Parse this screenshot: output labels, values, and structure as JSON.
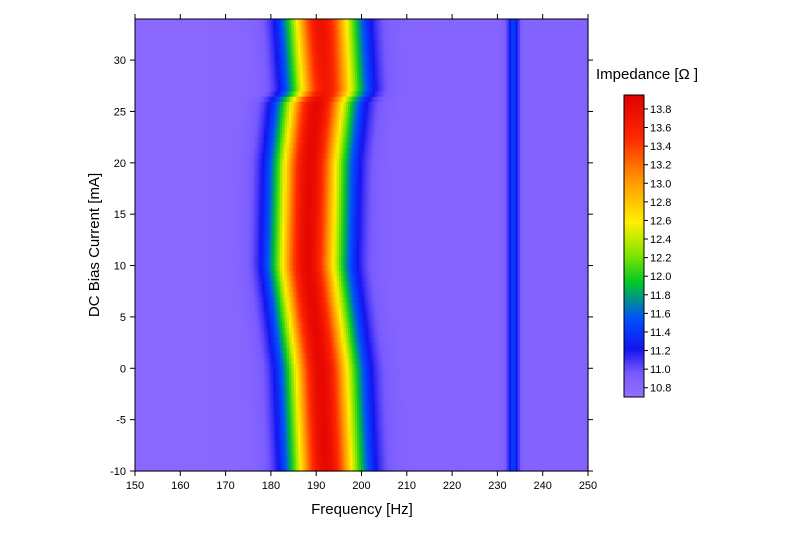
{
  "chart_data": {
    "type": "heatmap",
    "xlabel": "Frequency [Hz]",
    "ylabel": "DC Bias Current [mA]",
    "xlim": [
      150,
      250
    ],
    "ylim": [
      -10,
      34
    ],
    "x_ticks": [
      150,
      160,
      170,
      180,
      190,
      200,
      210,
      220,
      230,
      240,
      250
    ],
    "y_ticks": [
      -10,
      -5,
      0,
      5,
      10,
      15,
      20,
      25,
      30
    ],
    "colorbar": {
      "title": "Impedance [Ω ]",
      "range": [
        10.7,
        13.95
      ],
      "ticks": [
        "13.8",
        "13.6",
        "13.4",
        "13.2",
        "13.0",
        "12.8",
        "12.6",
        "12.4",
        "12.2",
        "12.0",
        "11.8",
        "11.6",
        "11.4",
        "11.2",
        "11.0",
        "10.8"
      ]
    },
    "baseline_impedance": 10.85,
    "resonance_ridge": [
      {
        "current": -10,
        "center_hz": 192,
        "peak": 13.9
      },
      {
        "current": 0,
        "center_hz": 191,
        "peak": 13.9
      },
      {
        "current": 10,
        "center_hz": 188,
        "peak": 13.9
      },
      {
        "current": 20,
        "center_hz": 188.5,
        "peak": 13.9
      },
      {
        "current": 26,
        "center_hz": 190,
        "peak": 13.9
      },
      {
        "current": 27,
        "center_hz": 192,
        "peak": 13.7
      },
      {
        "current": 34,
        "center_hz": 191,
        "peak": 13.8
      }
    ],
    "secondary_line": {
      "center_hz": 233.5,
      "impedance": 11.45
    }
  }
}
